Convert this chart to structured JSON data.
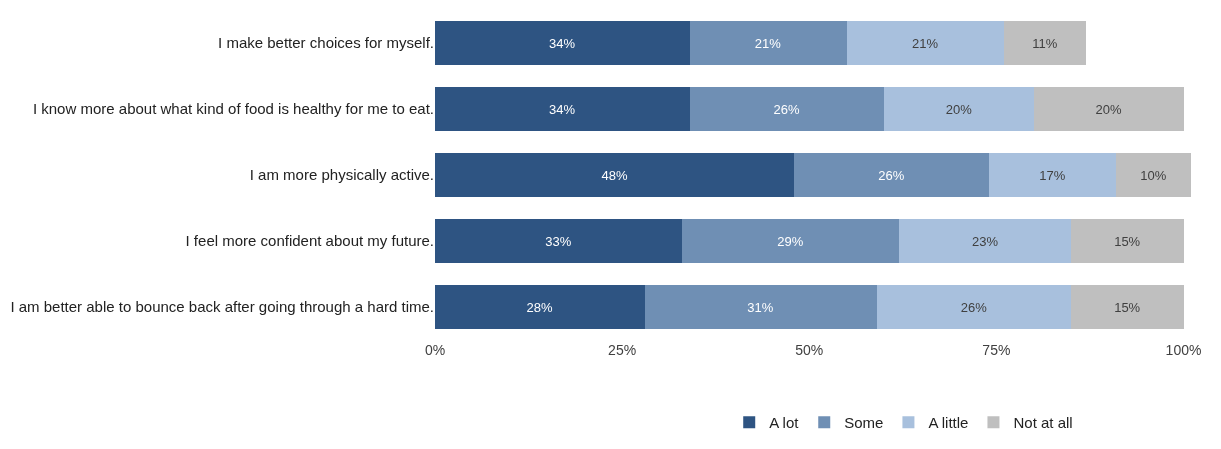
{
  "chart_data": {
    "type": "bar",
    "orientation": "horizontal",
    "stacked": true,
    "categories": [
      "I make better choices for myself.",
      "I know more about what kind of food is healthy for me to eat.",
      "I am more physically active.",
      "I feel more confident about my future.",
      "I am better able to bounce back after going through a hard time."
    ],
    "series": [
      {
        "name": "A lot",
        "color": "#2e5482",
        "values": [
          34,
          34,
          48,
          33,
          28
        ],
        "value_labels": [
          "34%",
          "34%",
          "48%",
          "33%",
          "28%"
        ]
      },
      {
        "name": "Some",
        "color": "#6f8fb4",
        "values": [
          21,
          26,
          26,
          29,
          31
        ],
        "value_labels": [
          "21%",
          "26%",
          "26%",
          "29%",
          "31%"
        ]
      },
      {
        "name": "A little",
        "color": "#a8c0dd",
        "values": [
          21,
          20,
          17,
          23,
          26
        ],
        "value_labels": [
          "21%",
          "20%",
          "17%",
          "23%",
          "26%"
        ]
      },
      {
        "name": "Not at all",
        "color": "#bfbfbf",
        "values": [
          11,
          20,
          10,
          15,
          15
        ],
        "value_labels": [
          "11%",
          "20%",
          "10%",
          "15%",
          "15%"
        ]
      }
    ],
    "xlim": [
      0,
      101
    ],
    "xticks": [
      {
        "value": 0,
        "label": "0%"
      },
      {
        "value": 25,
        "label": "25%"
      },
      {
        "value": 50,
        "label": "50%"
      },
      {
        "value": 75,
        "label": "75%"
      },
      {
        "value": 100,
        "label": "100%"
      }
    ],
    "legend": "bottom"
  }
}
